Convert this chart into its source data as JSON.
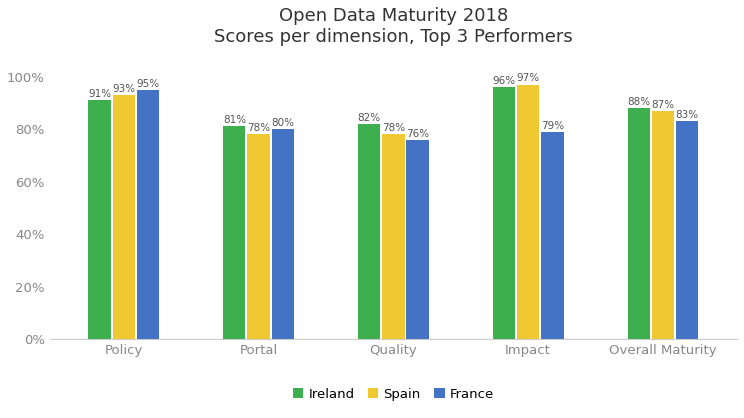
{
  "title_line1": "Open Data Maturity 2018",
  "title_line2": "Scores per dimension, Top 3 Performers",
  "categories": [
    "Policy",
    "Portal",
    "Quality",
    "Impact",
    "Overall Maturity"
  ],
  "countries": [
    "Ireland",
    "Spain",
    "France"
  ],
  "values": {
    "Ireland": [
      0.91,
      0.81,
      0.82,
      0.96,
      0.88
    ],
    "Spain": [
      0.93,
      0.78,
      0.78,
      0.97,
      0.87
    ],
    "France": [
      0.95,
      0.8,
      0.76,
      0.79,
      0.83
    ]
  },
  "labels": {
    "Ireland": [
      "91%",
      "81%",
      "82%",
      "96%",
      "88%"
    ],
    "Spain": [
      "93%",
      "78%",
      "78%",
      "97%",
      "87%"
    ],
    "France": [
      "95%",
      "80%",
      "76%",
      "79%",
      "83%"
    ]
  },
  "colors": {
    "Ireland": "#3daf4f",
    "Spain": "#f0c832",
    "France": "#4472c4"
  },
  "bar_width": 0.18,
  "ylim": [
    0,
    1.08
  ],
  "yticks": [
    0.0,
    0.2,
    0.4,
    0.6,
    0.8,
    1.0
  ],
  "ytick_labels": [
    "0%",
    "20%",
    "40%",
    "60%",
    "80%",
    "100%"
  ],
  "background_color": "#ffffff",
  "label_fontsize": 7.5,
  "axis_label_fontsize": 9.5,
  "title_fontsize": 13,
  "legend_fontsize": 9.5,
  "label_color": "#555555",
  "axis_color": "#888888",
  "spine_color": "#cccccc"
}
